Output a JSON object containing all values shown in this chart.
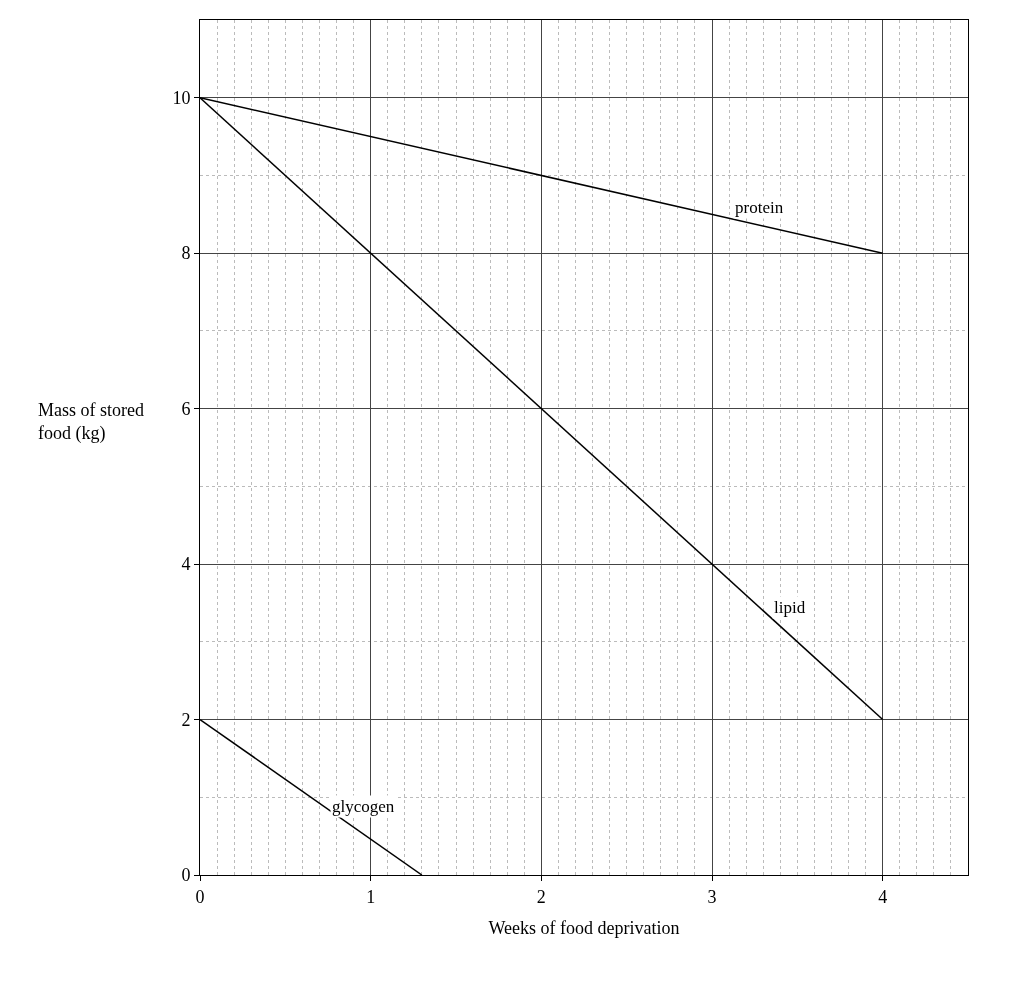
{
  "chart_data": {
    "type": "line",
    "xlabel": "Weeks of food deprivation",
    "ylabel": "Mass of stored\nfood (kg)",
    "series": [
      {
        "name": "protein",
        "color": "#000000",
        "x": [
          0,
          4
        ],
        "values": [
          10,
          8
        ]
      },
      {
        "name": "lipid",
        "color": "#000000",
        "x": [
          0,
          4
        ],
        "values": [
          10,
          2
        ]
      },
      {
        "name": "glycogen",
        "color": "#000000",
        "x": [
          0,
          1.3
        ],
        "values": [
          2,
          0
        ]
      }
    ],
    "xlim": [
      0,
      4.5
    ],
    "xticks": [
      0,
      1,
      2,
      3,
      4
    ],
    "ylim": [
      0,
      11
    ],
    "yticks": [
      0,
      2,
      4,
      6,
      8,
      10
    ],
    "grid": true,
    "legend": false,
    "marker": "none",
    "line_style": "solid"
  }
}
